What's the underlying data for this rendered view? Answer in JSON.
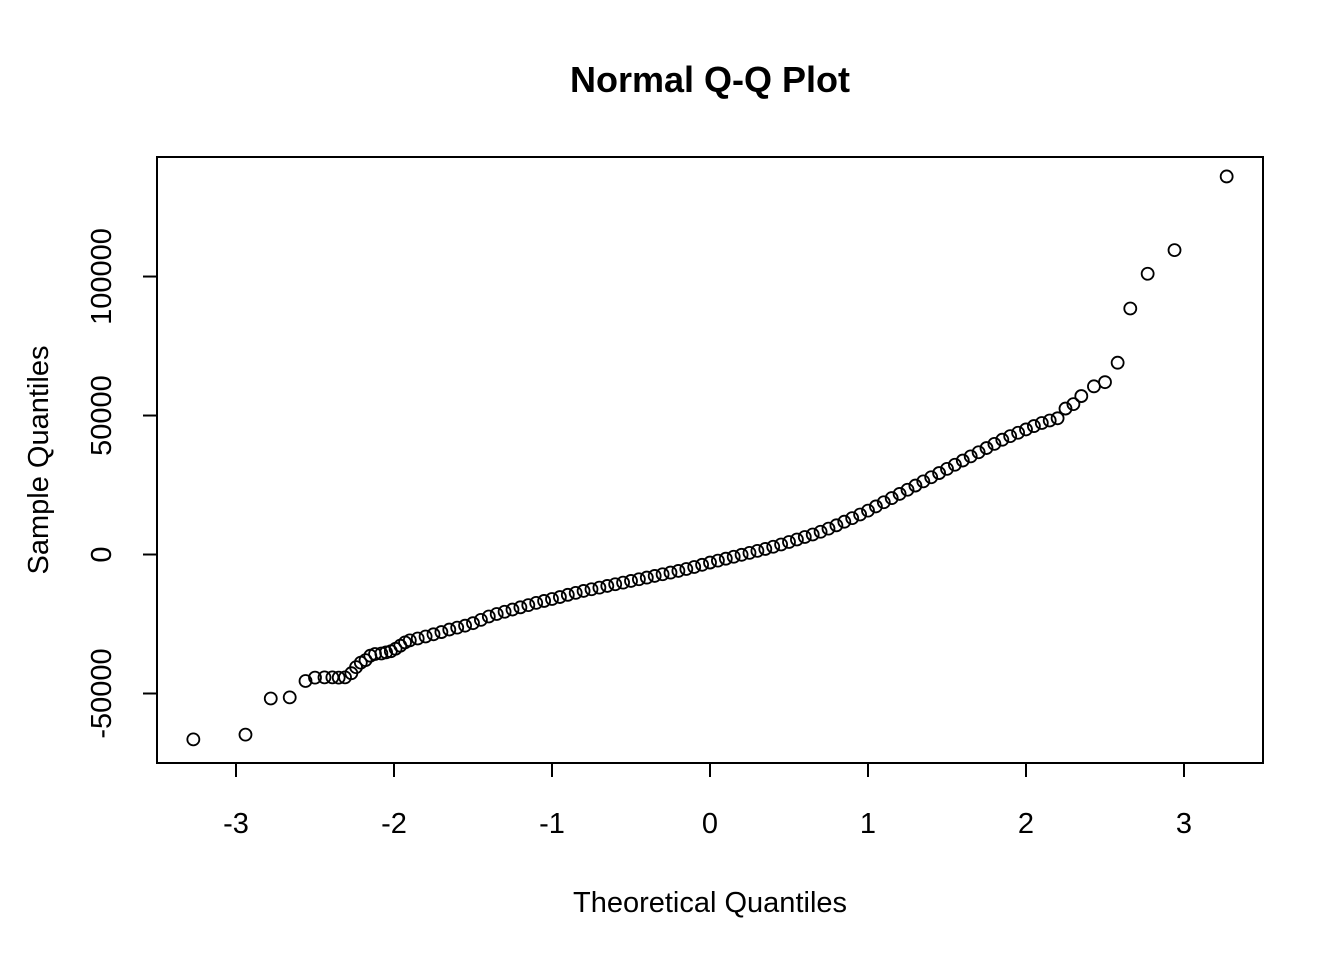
{
  "chart_data": {
    "type": "scatter",
    "title": "Normal Q-Q Plot",
    "xlabel": "Theoretical Quantiles",
    "ylabel": "Sample Quantiles",
    "xlim": [
      -3.5,
      3.5
    ],
    "ylim": [
      -75000,
      143000
    ],
    "xticks": [
      -3,
      -2,
      -1,
      0,
      1,
      2,
      3
    ],
    "yticks": [
      -50000,
      0,
      50000,
      100000
    ],
    "xtick_labels": [
      "-3",
      "-2",
      "-1",
      "0",
      "1",
      "2",
      "3"
    ],
    "ytick_labels": [
      "-50000",
      "0",
      "50000",
      "100000"
    ],
    "grid": false,
    "legend": "none",
    "marker_color": "#000000",
    "points": [
      [
        -3.27,
        -66500
      ],
      [
        -2.94,
        -64800
      ],
      [
        -2.78,
        -51800
      ],
      [
        -2.66,
        -51400
      ],
      [
        -2.56,
        -45500
      ],
      [
        -2.5,
        -44300
      ],
      [
        -2.44,
        -44200
      ],
      [
        -2.39,
        -44200
      ],
      [
        -2.35,
        -44300
      ],
      [
        -2.31,
        -44200
      ],
      [
        -2.27,
        -42700
      ],
      [
        -2.24,
        -40500
      ],
      [
        -2.21,
        -38900
      ],
      [
        -2.18,
        -38000
      ],
      [
        -2.15,
        -36400
      ],
      [
        -2.12,
        -35800
      ],
      [
        -2.08,
        -35600
      ],
      [
        -2.05,
        -35200
      ],
      [
        -2.02,
        -34800
      ],
      [
        -1.99,
        -33900
      ],
      [
        -1.96,
        -32800
      ],
      [
        -1.93,
        -31600
      ],
      [
        -1.9,
        -30900
      ],
      [
        -1.85,
        -30200
      ],
      [
        -1.8,
        -29500
      ],
      [
        -1.75,
        -28700
      ],
      [
        -1.7,
        -27900
      ],
      [
        -1.65,
        -27000
      ],
      [
        -1.6,
        -26300
      ],
      [
        -1.55,
        -25600
      ],
      [
        -1.5,
        -24700
      ],
      [
        -1.45,
        -23500
      ],
      [
        -1.4,
        -22300
      ],
      [
        -1.35,
        -21400
      ],
      [
        -1.3,
        -20600
      ],
      [
        -1.25,
        -19800
      ],
      [
        -1.2,
        -19000
      ],
      [
        -1.15,
        -18200
      ],
      [
        -1.1,
        -17400
      ],
      [
        -1.05,
        -16700
      ],
      [
        -1.0,
        -16000
      ],
      [
        -0.95,
        -15300
      ],
      [
        -0.9,
        -14500
      ],
      [
        -0.85,
        -13800
      ],
      [
        -0.8,
        -13100
      ],
      [
        -0.75,
        -12500
      ],
      [
        -0.7,
        -11900
      ],
      [
        -0.65,
        -11300
      ],
      [
        -0.6,
        -10700
      ],
      [
        -0.55,
        -10100
      ],
      [
        -0.5,
        -9500
      ],
      [
        -0.45,
        -8900
      ],
      [
        -0.4,
        -8300
      ],
      [
        -0.35,
        -7700
      ],
      [
        -0.3,
        -7100
      ],
      [
        -0.25,
        -6500
      ],
      [
        -0.2,
        -5900
      ],
      [
        -0.15,
        -5200
      ],
      [
        -0.1,
        -4500
      ],
      [
        -0.05,
        -3700
      ],
      [
        0.0,
        -2900
      ],
      [
        0.05,
        -2200
      ],
      [
        0.1,
        -1500
      ],
      [
        0.15,
        -800
      ],
      [
        0.2,
        -100
      ],
      [
        0.25,
        600
      ],
      [
        0.3,
        1300
      ],
      [
        0.35,
        2000
      ],
      [
        0.4,
        2800
      ],
      [
        0.45,
        3600
      ],
      [
        0.5,
        4500
      ],
      [
        0.55,
        5400
      ],
      [
        0.6,
        6300
      ],
      [
        0.65,
        7200
      ],
      [
        0.7,
        8200
      ],
      [
        0.75,
        9300
      ],
      [
        0.8,
        10500
      ],
      [
        0.85,
        11800
      ],
      [
        0.9,
        13100
      ],
      [
        0.95,
        14400
      ],
      [
        1.0,
        15800
      ],
      [
        1.05,
        17300
      ],
      [
        1.1,
        18800
      ],
      [
        1.15,
        20300
      ],
      [
        1.2,
        21800
      ],
      [
        1.25,
        23300
      ],
      [
        1.3,
        24800
      ],
      [
        1.35,
        26300
      ],
      [
        1.4,
        27800
      ],
      [
        1.45,
        29300
      ],
      [
        1.5,
        30800
      ],
      [
        1.55,
        32300
      ],
      [
        1.6,
        33800
      ],
      [
        1.65,
        35300
      ],
      [
        1.7,
        36800
      ],
      [
        1.75,
        38300
      ],
      [
        1.8,
        39800
      ],
      [
        1.85,
        41300
      ],
      [
        1.9,
        42600
      ],
      [
        1.95,
        43800
      ],
      [
        2.0,
        45000
      ],
      [
        2.05,
        46200
      ],
      [
        2.1,
        47300
      ],
      [
        2.15,
        48200
      ],
      [
        2.2,
        49000
      ],
      [
        2.25,
        52500
      ],
      [
        2.3,
        54100
      ],
      [
        2.35,
        57000
      ],
      [
        2.43,
        60500
      ],
      [
        2.5,
        62000
      ],
      [
        2.58,
        69000
      ],
      [
        2.66,
        88500
      ],
      [
        2.77,
        101000
      ],
      [
        2.94,
        109500
      ],
      [
        3.27,
        136000
      ]
    ]
  }
}
